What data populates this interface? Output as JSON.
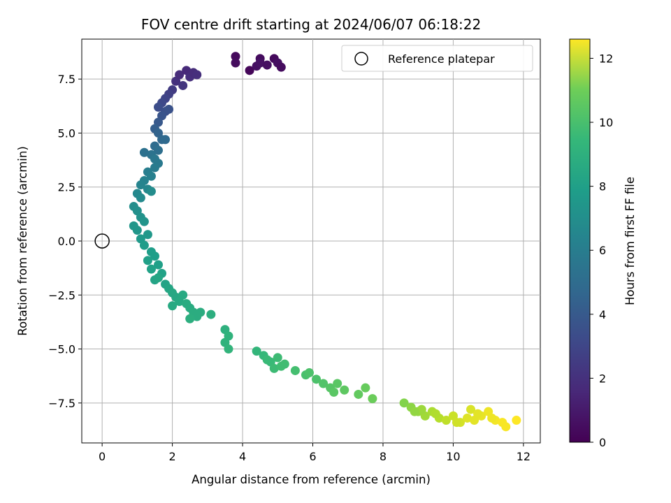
{
  "chart_data": {
    "type": "scatter",
    "title": "FOV centre drift starting at 2024/06/07 06:18:22",
    "xlabel": "Angular distance from reference (arcmin)",
    "ylabel": "Rotation from reference (arcmin)",
    "xlim": [
      -0.58,
      12.48
    ],
    "ylim": [
      -9.35,
      9.35
    ],
    "xticks": [
      0,
      2,
      4,
      6,
      8,
      10,
      12
    ],
    "yticks": [
      -7.5,
      -5.0,
      -2.5,
      0.0,
      2.5,
      5.0,
      7.5
    ],
    "xtick_labels": [
      "0",
      "2",
      "4",
      "6",
      "8",
      "10",
      "12"
    ],
    "ytick_labels": [
      "−7.5",
      "−5.0",
      "−2.5",
      "0.0",
      "2.5",
      "5.0",
      "7.5"
    ],
    "grid": true,
    "legend": {
      "placement": "top-right",
      "entries": [
        "Reference platepar"
      ]
    },
    "reference_point": {
      "x": 0,
      "y": 0,
      "marker": "open-circle"
    },
    "colorbar": {
      "label": "Hours from first FF file",
      "range": [
        0,
        12.6
      ],
      "ticks": [
        0,
        2,
        4,
        6,
        8,
        10,
        12
      ],
      "tick_labels": [
        "0",
        "2",
        "4",
        "6",
        "8",
        "10",
        "12"
      ],
      "colormap": "viridis"
    },
    "point_groups": [
      {
        "name": "cluster-0h",
        "x": [
          3.8,
          3.8,
          4.2,
          4.4,
          4.5,
          4.5,
          4.7,
          4.9,
          5.0,
          5.1
        ],
        "y": [
          8.55,
          8.25,
          7.9,
          8.1,
          8.45,
          8.25,
          8.15,
          8.45,
          8.25,
          8.05
        ],
        "hours": [
          0.3,
          0.4,
          0.2,
          0.5,
          0.4,
          0.6,
          0.5,
          0.3,
          0.5,
          0.4
        ]
      },
      {
        "name": "arc-upper",
        "x": [
          2.1,
          2.2,
          2.4,
          2.5,
          2.6,
          2.7,
          2.3,
          2.0,
          1.9,
          1.8,
          1.7,
          1.6,
          1.8,
          1.7,
          1.6,
          1.9,
          1.5,
          1.6,
          1.7,
          1.5,
          1.8,
          1.6,
          1.4,
          1.5,
          1.2,
          1.6,
          1.5,
          1.3,
          1.4,
          1.2,
          1.1,
          1.3,
          1.0,
          1.1,
          1.4
        ],
        "y": [
          7.4,
          7.7,
          7.9,
          7.6,
          7.8,
          7.7,
          7.2,
          7.0,
          6.8,
          6.6,
          6.4,
          6.2,
          6.0,
          5.8,
          5.5,
          6.1,
          5.2,
          5.0,
          4.7,
          4.4,
          4.7,
          4.2,
          4.0,
          3.8,
          4.1,
          3.6,
          3.4,
          3.2,
          3.0,
          2.8,
          2.6,
          2.4,
          2.2,
          2.0,
          2.3
        ],
        "hours": [
          1.8,
          1.6,
          1.5,
          1.7,
          1.6,
          1.7,
          2.0,
          2.2,
          2.4,
          2.6,
          2.8,
          3.0,
          3.1,
          3.3,
          3.5,
          3.2,
          3.8,
          4.0,
          4.2,
          4.4,
          4.3,
          4.6,
          4.8,
          5.0,
          4.7,
          5.1,
          5.2,
          5.4,
          5.5,
          5.6,
          5.7,
          5.8,
          5.9,
          6.0,
          6.1
        ]
      },
      {
        "name": "arc-middle",
        "x": [
          0.9,
          1.0,
          1.1,
          1.2,
          0.9,
          1.0,
          1.3,
          1.1,
          1.2,
          1.4,
          1.5,
          1.3,
          1.6,
          1.4,
          1.7,
          1.5,
          1.8,
          1.6,
          1.9,
          2.0,
          2.1,
          2.2,
          2.3,
          2.0,
          2.4,
          2.5,
          2.6,
          2.7,
          2.8,
          2.5,
          3.1
        ],
        "y": [
          1.6,
          1.4,
          1.1,
          0.9,
          0.7,
          0.5,
          0.3,
          0.1,
          -0.2,
          -0.5,
          -0.7,
          -0.9,
          -1.1,
          -1.3,
          -1.5,
          -1.8,
          -2.0,
          -1.7,
          -2.2,
          -2.4,
          -2.6,
          -2.8,
          -2.5,
          -3.0,
          -2.9,
          -3.1,
          -3.3,
          -3.5,
          -3.3,
          -3.6,
          -3.4
        ],
        "hours": [
          6.2,
          6.3,
          6.4,
          6.5,
          6.6,
          6.6,
          6.7,
          6.8,
          6.9,
          7.0,
          7.0,
          7.1,
          7.1,
          7.2,
          7.2,
          7.3,
          7.3,
          7.4,
          7.4,
          7.5,
          7.5,
          7.6,
          7.6,
          7.6,
          7.7,
          7.7,
          7.8,
          7.8,
          7.8,
          7.9,
          7.9
        ]
      },
      {
        "name": "arc-lower",
        "x": [
          3.5,
          3.6,
          3.5,
          3.6,
          4.4,
          4.6,
          4.8,
          5.0,
          5.2,
          4.9,
          5.5,
          5.8,
          6.1,
          6.3,
          6.5,
          6.7,
          6.9,
          7.3,
          7.5,
          7.7,
          6.6,
          5.9,
          4.7,
          5.1
        ],
        "y": [
          -4.1,
          -4.4,
          -4.7,
          -5.0,
          -5.1,
          -5.3,
          -5.6,
          -5.4,
          -5.7,
          -5.9,
          -6.0,
          -6.2,
          -6.4,
          -6.6,
          -6.8,
          -6.6,
          -6.9,
          -7.1,
          -6.8,
          -7.3,
          -7.0,
          -6.1,
          -5.5,
          -5.8
        ],
        "hours": [
          8.0,
          8.1,
          8.1,
          8.2,
          8.3,
          8.4,
          8.5,
          8.6,
          8.7,
          8.6,
          8.8,
          8.9,
          9.0,
          9.1,
          9.2,
          9.3,
          9.4,
          9.5,
          9.6,
          9.7,
          9.3,
          9.0,
          8.5,
          8.7
        ]
      },
      {
        "name": "cluster-late",
        "x": [
          8.6,
          8.8,
          9.0,
          9.2,
          9.4,
          9.6,
          9.8,
          10.0,
          10.2,
          10.4,
          10.5,
          10.6,
          10.8,
          11.0,
          11.2,
          11.4,
          11.5,
          11.8,
          9.1,
          9.5,
          10.1,
          10.7,
          11.1,
          8.9
        ],
        "y": [
          -7.5,
          -7.7,
          -7.9,
          -8.1,
          -7.9,
          -8.2,
          -8.3,
          -8.1,
          -8.4,
          -8.2,
          -7.8,
          -8.3,
          -8.1,
          -7.9,
          -8.3,
          -8.4,
          -8.6,
          -8.3,
          -7.8,
          -8.0,
          -8.4,
          -8.0,
          -8.2,
          -7.9
        ],
        "hours": [
          10.2,
          10.4,
          10.6,
          10.8,
          11.0,
          11.2,
          11.4,
          11.6,
          11.8,
          12.0,
          11.9,
          12.1,
          12.2,
          12.3,
          12.4,
          12.5,
          12.5,
          12.6,
          10.7,
          11.1,
          11.7,
          12.1,
          12.3,
          10.5
        ]
      }
    ]
  }
}
